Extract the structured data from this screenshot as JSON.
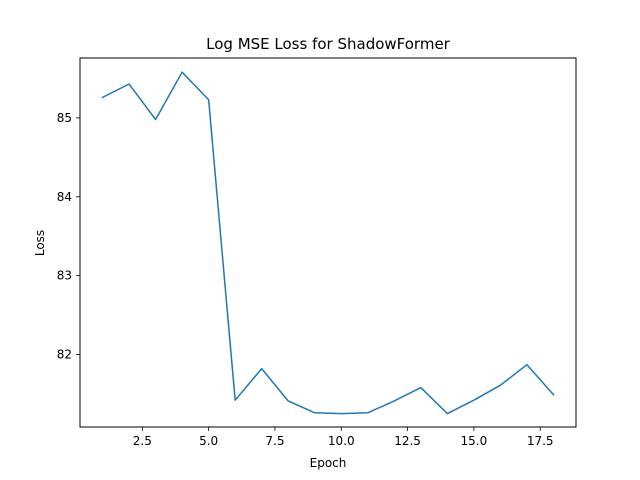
{
  "chart_data": {
    "type": "line",
    "title": "Log MSE Loss for ShadowFormer",
    "xlabel": "Epoch",
    "ylabel": "Loss",
    "xlim": [
      0.15,
      18.85
    ],
    "ylim": [
      81.08,
      85.76
    ],
    "xticks": [
      2.5,
      5.0,
      7.5,
      10.0,
      12.5,
      15.0,
      17.5
    ],
    "xtick_labels": [
      "2.5",
      "5.0",
      "7.5",
      "10.0",
      "12.5",
      "15.0",
      "17.5"
    ],
    "yticks": [
      82,
      83,
      84,
      85
    ],
    "ytick_labels": [
      "82",
      "83",
      "84",
      "85"
    ],
    "grid": false,
    "series": [
      {
        "color": "#1f77b4",
        "x": [
          1,
          2,
          3,
          4,
          5,
          6,
          7,
          8,
          9,
          10,
          11,
          12,
          13,
          14,
          15,
          16,
          17,
          18
        ],
        "y": [
          85.26,
          85.43,
          84.98,
          85.58,
          85.23,
          81.42,
          81.82,
          81.41,
          81.26,
          81.25,
          81.26,
          81.41,
          81.58,
          81.25,
          81.42,
          81.61,
          81.87,
          81.49
        ]
      }
    ]
  }
}
